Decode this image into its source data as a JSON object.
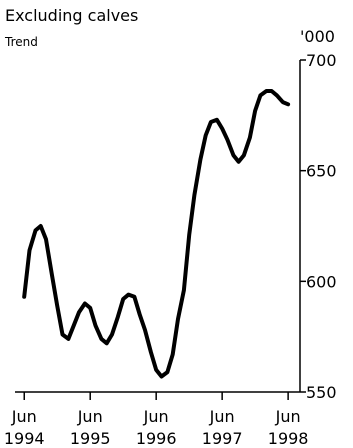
{
  "chart_data": {
    "type": "line",
    "subtitle": "Excluding calves",
    "note": "Trend",
    "y_unit": "'000",
    "x": [
      1994.5,
      1994.58,
      1994.67,
      1994.75,
      1994.83,
      1994.92,
      1995,
      1995.08,
      1995.17,
      1995.25,
      1995.33,
      1995.42,
      1995.5,
      1995.58,
      1995.67,
      1995.75,
      1995.83,
      1995.92,
      1996,
      1996.08,
      1996.17,
      1996.25,
      1996.33,
      1996.42,
      1996.5,
      1996.58,
      1996.67,
      1996.75,
      1996.83,
      1996.92,
      1997,
      1997.08,
      1997.17,
      1997.25,
      1997.33,
      1997.42,
      1997.5,
      1997.58,
      1997.67,
      1997.75,
      1997.83,
      1997.92,
      1998,
      1998.08,
      1998.17,
      1998.25,
      1998.33,
      1998.42,
      1998.5
    ],
    "series": [
      {
        "color": "#000000",
        "values": [
          593,
          614,
          623,
          625,
          619,
          603,
          589,
          576,
          574,
          580,
          586,
          590,
          588,
          580,
          574,
          572,
          576,
          584,
          592,
          594,
          593,
          585,
          578,
          568,
          560,
          557,
          559,
          567,
          583,
          596,
          621,
          639,
          655,
          666,
          672,
          673,
          669,
          664,
          657,
          654,
          657,
          665,
          677,
          684,
          686,
          686,
          684,
          681,
          680
        ]
      }
    ],
    "xlim": [
      1994.36,
      1998.68
    ],
    "xticks": [
      {
        "value": 1994.5,
        "label": "Jun 1994"
      },
      {
        "value": 1995.5,
        "label": "Jun 1995"
      },
      {
        "value": 1996.5,
        "label": "Jun 1996"
      },
      {
        "value": 1997.5,
        "label": "Jun 1997"
      },
      {
        "value": 1998.5,
        "label": "Jun 1998"
      }
    ],
    "ylim": [
      550,
      700
    ],
    "yticks": [
      550,
      600,
      650,
      700
    ]
  }
}
